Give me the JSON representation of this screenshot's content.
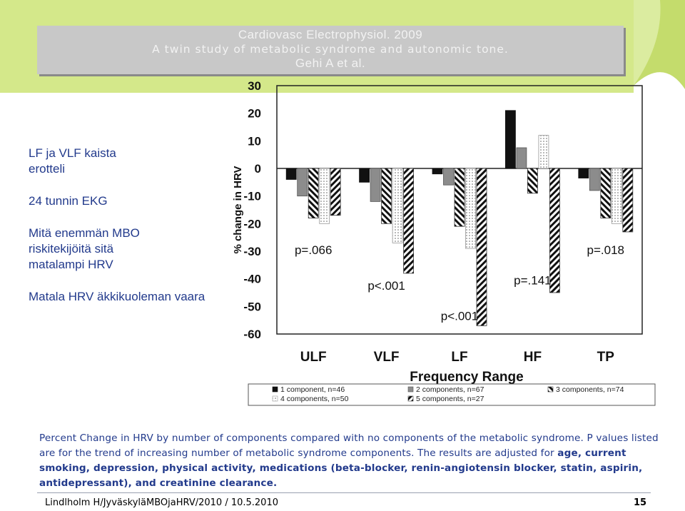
{
  "slide": {
    "title_lines": [
      "Cardiovasc Electrophysiol. 2009",
      "A twin study of metabolic syndrome and autonomic tone.",
      "Gehi A et al."
    ],
    "left_paragraphs": [
      "LF ja VLF kaista erotteli",
      "24 tunnin EKG",
      "Mitä enemmän MBO riskitekijöitä sitä matalampi HRV",
      "Matala HRV äkkikuoleman vaara"
    ],
    "caption_plain": "Percent Change in HRV by number of components compared with no components of the metabolic syndrome. P values listed are for the trend of increasing number of metabolic syndrome components. The results are adjusted for ",
    "caption_bold": "age, current smoking, depression, physical activity, medications (beta-blocker, renin-angiotensin blocker, statin, aspirin, antidepressant), and creatinine clearance.",
    "footer": "Lindlholm H/JyväskyläMBOjaHRV/2010 / 10.5.2010",
    "page_number": "15",
    "colors": {
      "text_blue": "#223a8c",
      "deco_green": "#d4e88a",
      "title_box": "#c8c8c8"
    }
  },
  "chart_data": {
    "type": "bar",
    "ylabel": "% change in HRV",
    "xlabel": "Frequency Range",
    "ylim": [
      -60,
      30
    ],
    "yticks": [
      30,
      20,
      10,
      0,
      -10,
      -20,
      -30,
      -40,
      -50,
      -60
    ],
    "categories": [
      "ULF",
      "VLF",
      "LF",
      "HF",
      "TP"
    ],
    "series": [
      {
        "name": "1 component, n=46",
        "values": [
          -4,
          -5,
          -2,
          21,
          -3.5
        ],
        "pattern": "black"
      },
      {
        "name": "2 components, n=67",
        "values": [
          -10,
          -12,
          -6,
          7.5,
          -8
        ],
        "pattern": "gray"
      },
      {
        "name": "3 components, n=74",
        "values": [
          -18,
          -20,
          -21,
          -9,
          -18
        ],
        "pattern": "diag-left"
      },
      {
        "name": "4 components, n=50",
        "values": [
          -20,
          -27,
          -29,
          12,
          -20
        ],
        "pattern": "dotted"
      },
      {
        "name": "5 components, n=27",
        "values": [
          -17,
          -38,
          -57,
          -45,
          -23
        ],
        "pattern": "diag-right"
      }
    ],
    "pvalues": [
      "p=.066",
      "p<.001",
      "p<.001",
      "p=.141",
      "p=.018"
    ],
    "legend_position": "bottom",
    "grid": false
  }
}
